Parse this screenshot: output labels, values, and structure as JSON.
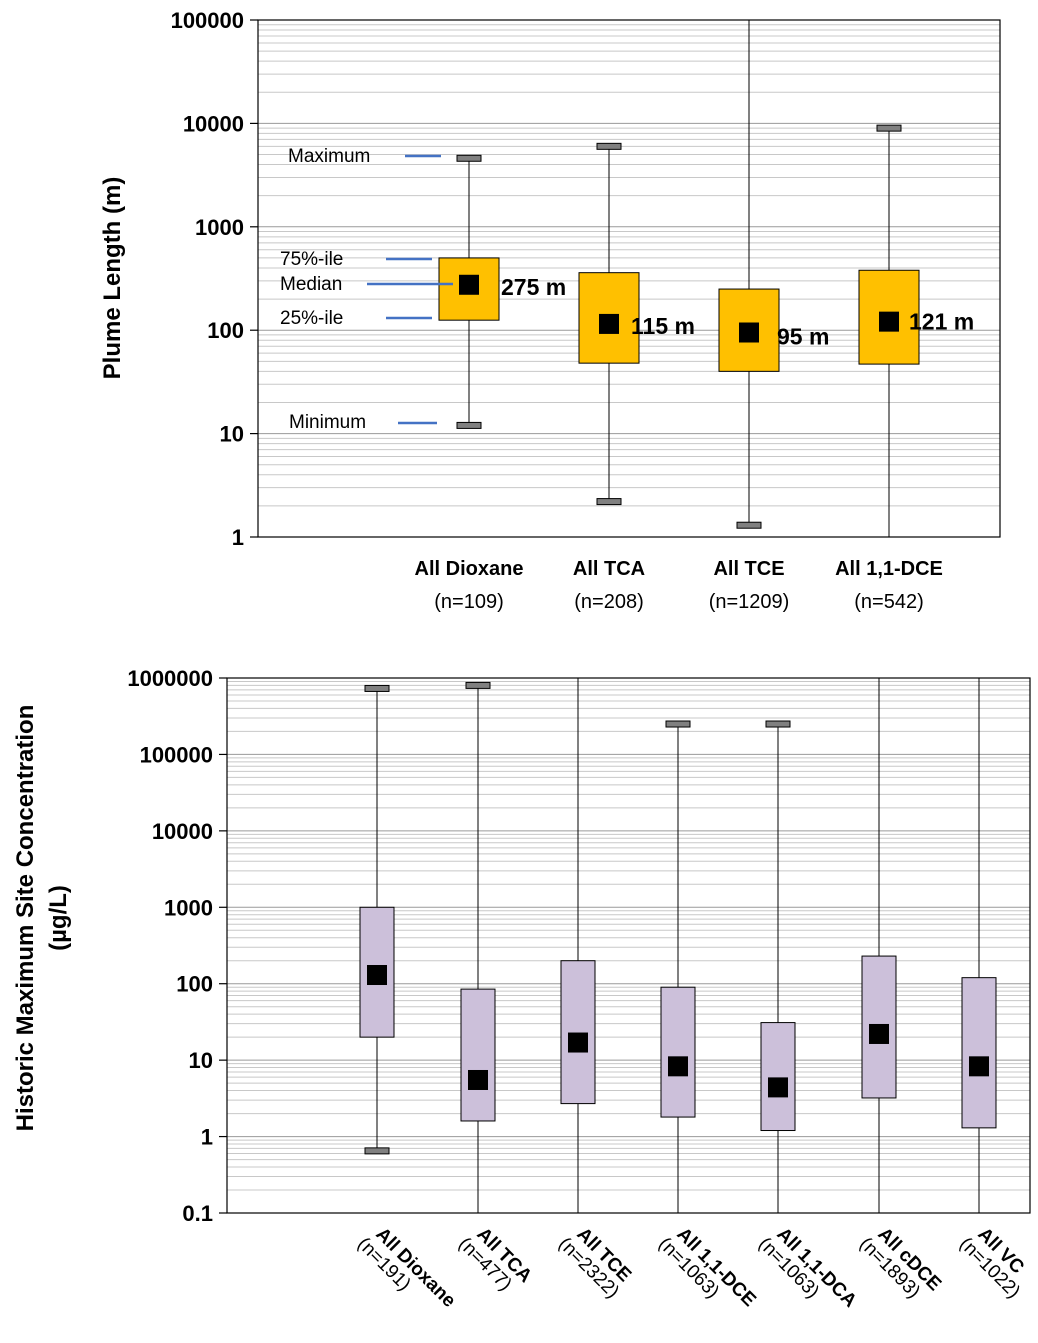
{
  "chart_data": [
    {
      "type": "box",
      "ylabel": "Plume Length (m)",
      "yscale": "log",
      "ylim": [
        1,
        100000
      ],
      "yticks": [
        "1",
        "10",
        "100",
        "1000",
        "10000",
        "100000"
      ],
      "grid": true,
      "box_color": "#FFC000",
      "legend_labels": {
        "maximum": "Maximum",
        "p75": "75%-ile",
        "median": "Median",
        "p25": "25%-ile",
        "minimum": "Minimum"
      },
      "categories": [
        {
          "name": "All Dioxane",
          "count": "(n=109)",
          "min": 12,
          "q1": 125,
          "median": 275,
          "q3": 500,
          "max": 4600,
          "median_label": "275 m"
        },
        {
          "name": "All TCA",
          "count": "(n=208)",
          "min": 2.2,
          "q1": 48,
          "median": 115,
          "q3": 360,
          "max": 6000,
          "median_label": "115 m"
        },
        {
          "name": "All TCE",
          "count": "(n=1209)",
          "min": 1.3,
          "q1": 40,
          "median": 95,
          "q3": 250,
          "max": 100000,
          "median_label": "95 m"
        },
        {
          "name": "All 1,1-DCE",
          "count": "(n=542)",
          "min": 1,
          "q1": 47,
          "median": 121,
          "q3": 380,
          "max": 9000,
          "median_label": "121 m"
        }
      ]
    },
    {
      "type": "box",
      "ylabel": "Historic Maximum Site Concentration",
      "ylabel_unit": "(µg/L)",
      "yscale": "log",
      "ylim": [
        0.1,
        1000000
      ],
      "yticks": [
        "0.1",
        "1",
        "10",
        "100",
        "1000",
        "10000",
        "100000",
        "1000000"
      ],
      "grid": true,
      "box_color": "#CCC0DA",
      "categories": [
        {
          "name": "All Dioxane",
          "count": "(n=191)",
          "min": 0.65,
          "q1": 20,
          "median": 130,
          "q3": 1000,
          "max": 730000
        },
        {
          "name": "All TCA",
          "count": "(n=477)",
          "min": 0.1,
          "q1": 1.6,
          "median": 5.5,
          "q3": 85,
          "max": 800000
        },
        {
          "name": "All TCE",
          "count": "(n=2322)",
          "min": 0.1,
          "q1": 2.7,
          "median": 17,
          "q3": 200,
          "max": 1000000
        },
        {
          "name": "All 1,1-DCE",
          "count": "(n=1063)",
          "min": 0.1,
          "q1": 1.8,
          "median": 8.3,
          "q3": 90,
          "max": 250000
        },
        {
          "name": "All 1,1-DCA",
          "count": "(n=1063)",
          "min": 0.1,
          "q1": 1.2,
          "median": 4.4,
          "q3": 31,
          "max": 250000
        },
        {
          "name": "All cDCE",
          "count": "(n=1893)",
          "min": 0.1,
          "q1": 3.2,
          "median": 22,
          "q3": 230,
          "max": 1000000
        },
        {
          "name": "All VC",
          "count": "(n=1022)",
          "min": 0.1,
          "q1": 1.3,
          "median": 8.3,
          "q3": 120,
          "max": 1000000
        }
      ]
    }
  ]
}
